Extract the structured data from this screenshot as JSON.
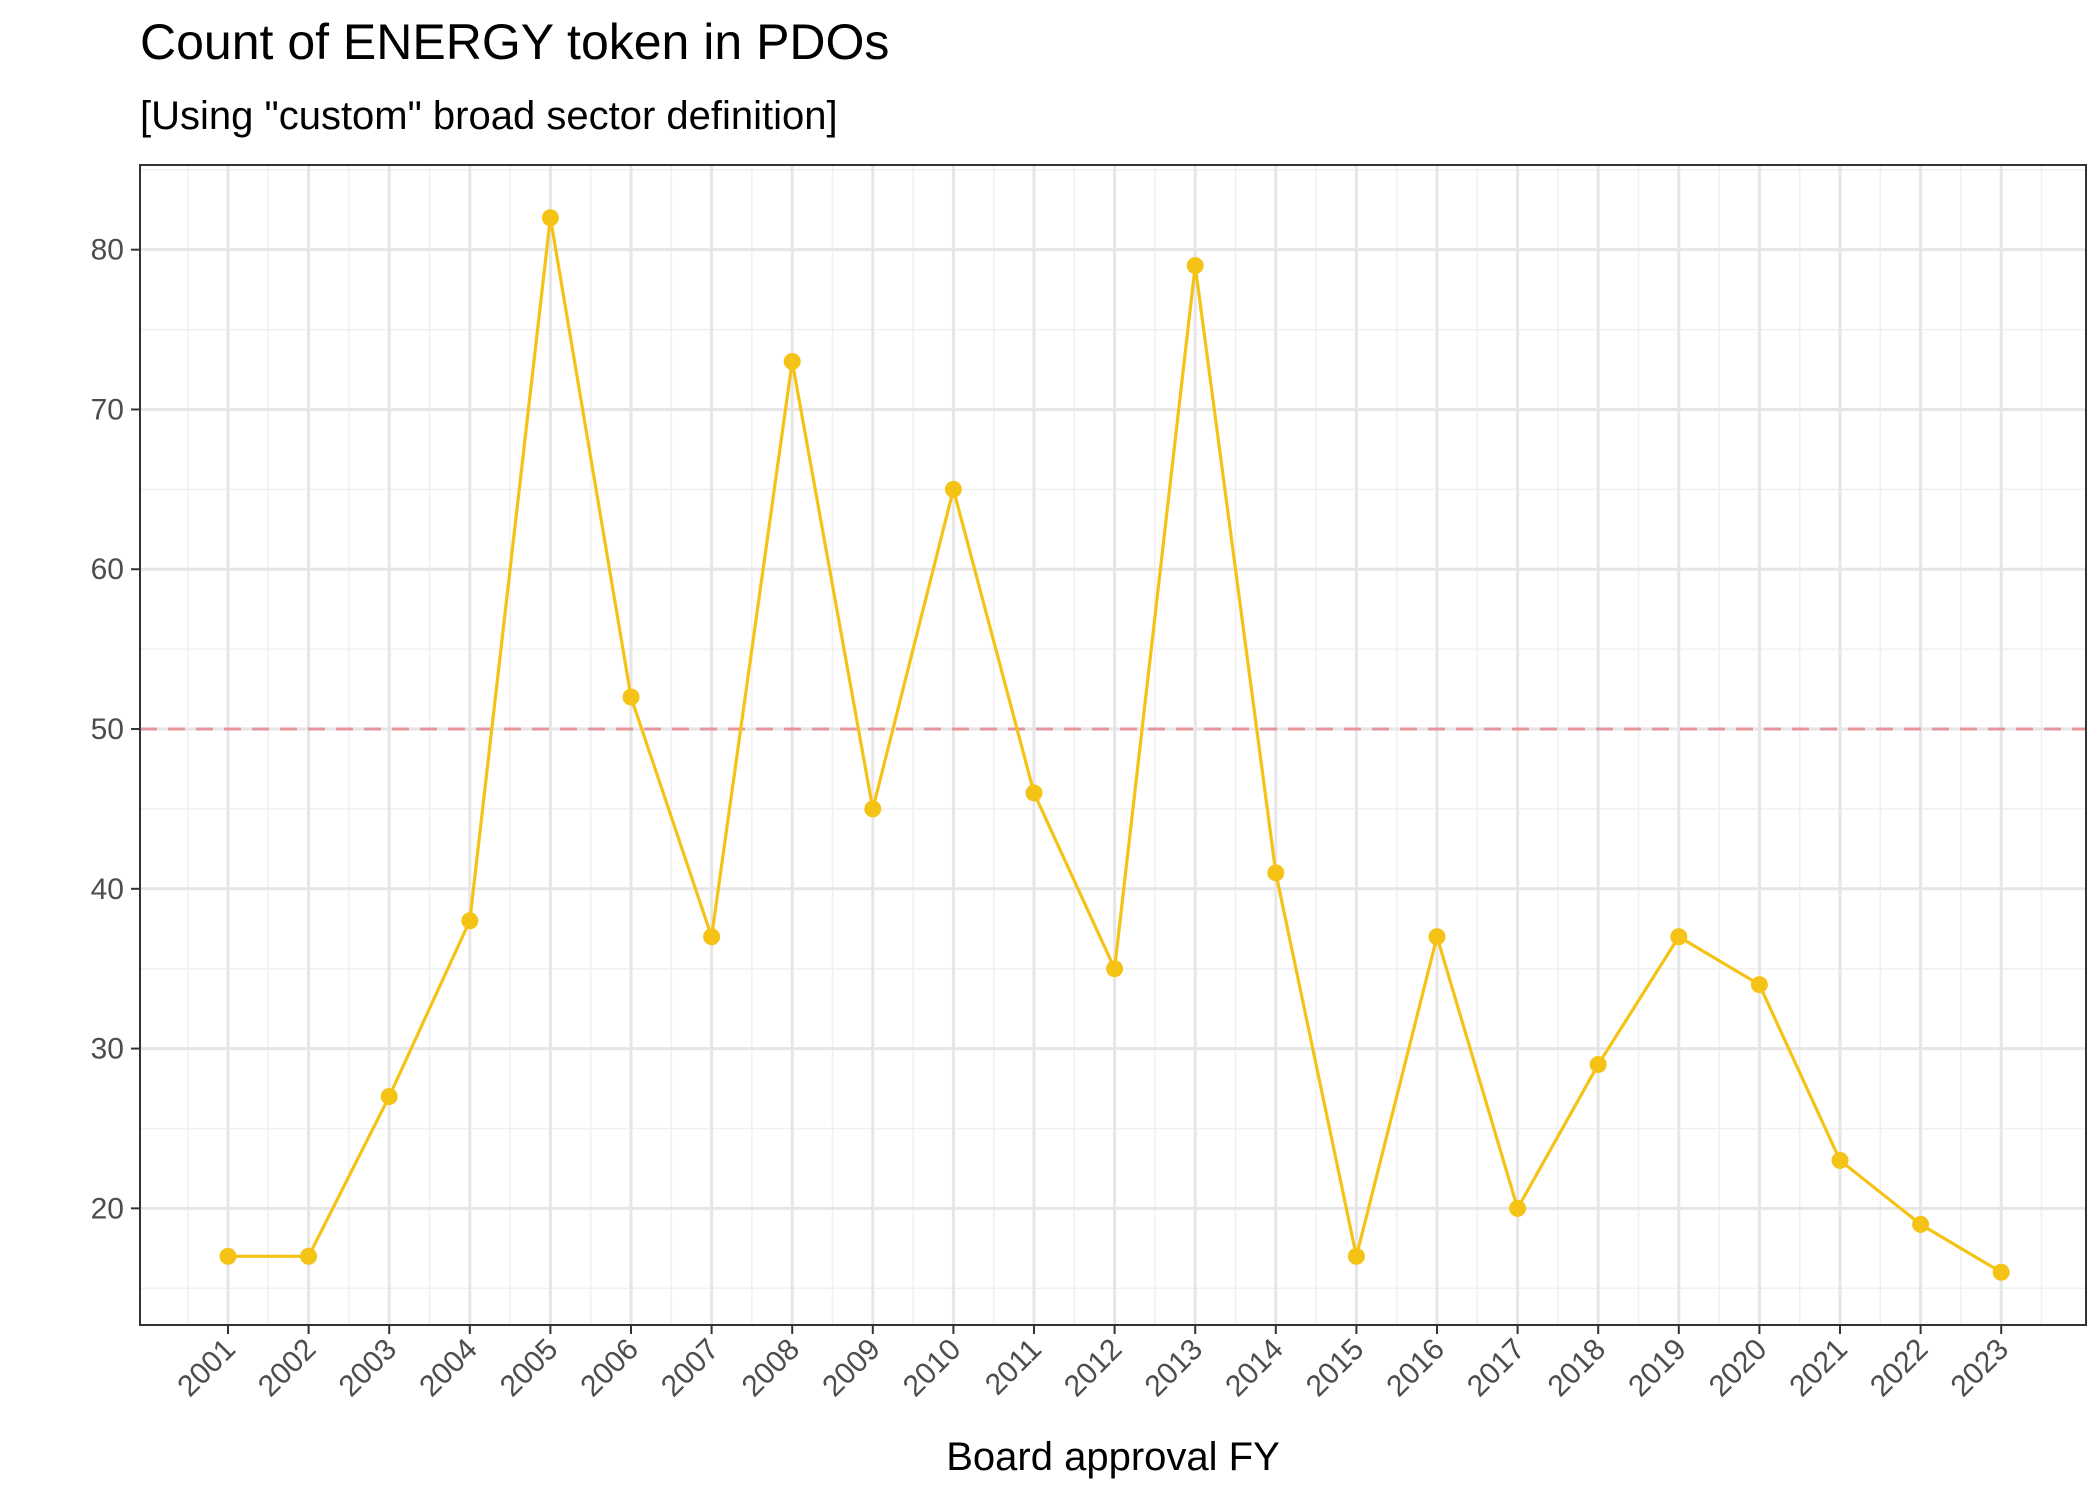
{
  "chart_data": {
    "type": "line",
    "title": "Count of  ENERGY token in PDOs",
    "subtitle": "[Using \"custom\" broad sector definition]",
    "xlabel": "Board approval FY",
    "ylabel": "",
    "categories": [
      "2001",
      "2002",
      "2003",
      "2004",
      "2005",
      "2006",
      "2007",
      "2008",
      "2009",
      "2010",
      "2011",
      "2012",
      "2013",
      "2014",
      "2015",
      "2016",
      "2017",
      "2018",
      "2019",
      "2020",
      "2021",
      "2022",
      "2023"
    ],
    "series": [
      {
        "values": [
          17,
          17,
          27,
          38,
          82,
          52,
          37,
          73,
          45,
          65,
          46,
          35,
          79,
          41,
          17,
          37,
          20,
          29,
          37,
          34,
          23,
          19,
          16
        ]
      }
    ],
    "ylim": [
      12.7,
      85.3
    ],
    "yticks": [
      20,
      30,
      40,
      50,
      60,
      70,
      80
    ],
    "reference_line": {
      "y": 50,
      "style": "dashed",
      "color": "#e6959c"
    },
    "line_color": "#f5c216",
    "grid": true,
    "legend": "none"
  }
}
